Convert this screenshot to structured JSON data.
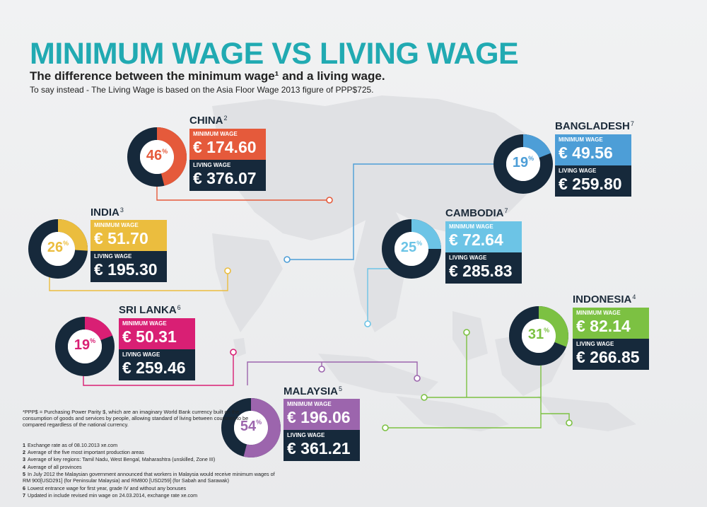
{
  "title": "MINIMUM WAGE VS LIVING WAGE",
  "subtitle": "The difference between the minimum wage¹ and a living wage.",
  "subtitle2": "To say instead - The Living Wage is based on the Asia Floor Wage 2013 figure of PPP$725.",
  "labels": {
    "minimum": "MINIMUM WAGE",
    "living": "LIVING WAGE"
  },
  "chart_data": {
    "type": "pie",
    "currency": "€",
    "countries": [
      {
        "name": "CHINA",
        "note": "2",
        "minimum_wage": 174.6,
        "living_wage": 376.07,
        "percent": 46,
        "color": "#e55a3b",
        "display": {
          "min": "€ 174.60",
          "liv": "€ 376.07",
          "pct": "46"
        }
      },
      {
        "name": "BANGLADESH",
        "note": "7",
        "minimum_wage": 49.56,
        "living_wage": 259.8,
        "percent": 19,
        "color": "#4d9ed7",
        "display": {
          "min": "€ 49.56",
          "liv": "€ 259.80",
          "pct": "19"
        }
      },
      {
        "name": "INDIA",
        "note": "3",
        "minimum_wage": 51.7,
        "living_wage": 195.3,
        "percent": 26,
        "color": "#ebbd3e",
        "display": {
          "min": "€ 51.70",
          "liv": "€ 195.30",
          "pct": "26"
        }
      },
      {
        "name": "CAMBODIA",
        "note": "7",
        "minimum_wage": 72.64,
        "living_wage": 285.83,
        "percent": 25,
        "color": "#6cc4e6",
        "display": {
          "min": "€ 72.64",
          "liv": "€ 285.83",
          "pct": "25"
        }
      },
      {
        "name": "SRI LANKA",
        "note": "6",
        "minimum_wage": 50.31,
        "living_wage": 259.46,
        "percent": 19,
        "color": "#d91f74",
        "display": {
          "min": "€ 50.31",
          "liv": "€ 259.46",
          "pct": "19"
        }
      },
      {
        "name": "INDONESIA",
        "note": "4",
        "minimum_wage": 82.14,
        "living_wage": 266.85,
        "percent": 31,
        "color": "#7cc142",
        "display": {
          "min": "€ 82.14",
          "liv": "€ 266.85",
          "pct": "31"
        }
      },
      {
        "name": "MALAYSIA",
        "note": "5",
        "minimum_wage": 196.06,
        "living_wage": 361.21,
        "percent": 54,
        "color": "#9c65ad",
        "display": {
          "min": "€ 196.06",
          "liv": "€ 361.21",
          "pct": "54"
        }
      }
    ]
  },
  "ppp_note": "*PPP$ = Purchasing Power Parity $, which are an imaginary World Bank currency built on the consumption of goods and services by people, allowing standard of living between countries to be compared regardless of the national currency.",
  "footnotes": [
    {
      "n": "1",
      "text": "Exchange rate as of 08.10.2013 xe.com"
    },
    {
      "n": "2",
      "text": "Average of the five most important production areas"
    },
    {
      "n": "3",
      "text": "Average of key regions: Tamil Nadu, West Bengal, Maharashtra (unskilled, Zone III)"
    },
    {
      "n": "4",
      "text": "Average of all provinces"
    },
    {
      "n": "5",
      "text": "In July 2012 the Malaysian government announced that workers in Malaysia would receive minimum wages of RM 900[USD291] (for Peninsular Malaysia) and RM800 [USD259] (for Sabah and Sarawak)"
    },
    {
      "n": "6",
      "text": "Lowest entrance wage for first year, grade IV and without any bonuses"
    },
    {
      "n": "7",
      "text": "Updated in include revised min wage on 24.03.2014, exchange rate xe.com"
    }
  ]
}
